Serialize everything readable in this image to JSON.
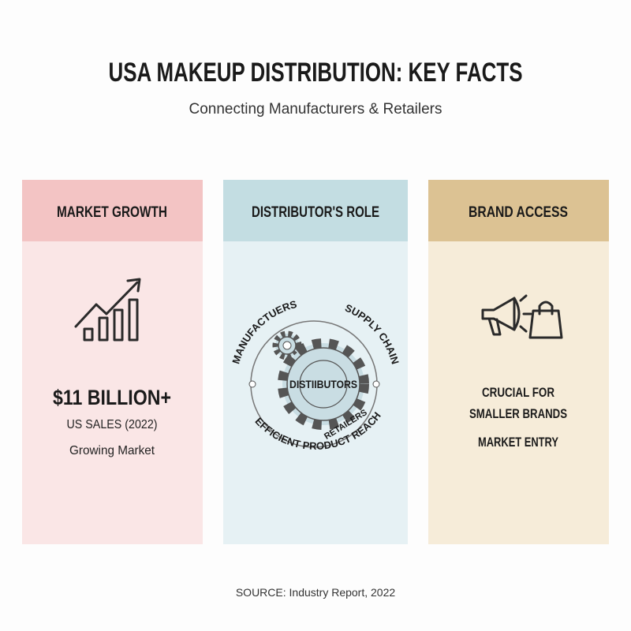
{
  "header": {
    "title": "USA MAKEUP DISTRIBUTION: KEY FACTS",
    "subtitle": "Connecting Manufacturers & Retailers"
  },
  "cards": [
    {
      "title": "MARKET GROWTH",
      "lines": [
        "$11 BILLION+",
        "US SALES (2022)",
        "Growing Market"
      ]
    },
    {
      "title": "DISTRIBUTOR'S ROLE",
      "diagram": {
        "top_left": "MANUFACTUERS",
        "top_right": "SUPPLY CHAIN",
        "center": "DISTIIBUTORS",
        "inner_bottom": "RETAILERS",
        "bottom": "EFFICIENT PRODUCT REACH"
      }
    },
    {
      "title": "BRAND ACCESS",
      "lines": [
        "CRUCIAL FOR",
        "SMALLER BRANDS",
        "MARKET ENTRY"
      ]
    }
  ],
  "source": "SOURCE: Industry Report, 2022"
}
